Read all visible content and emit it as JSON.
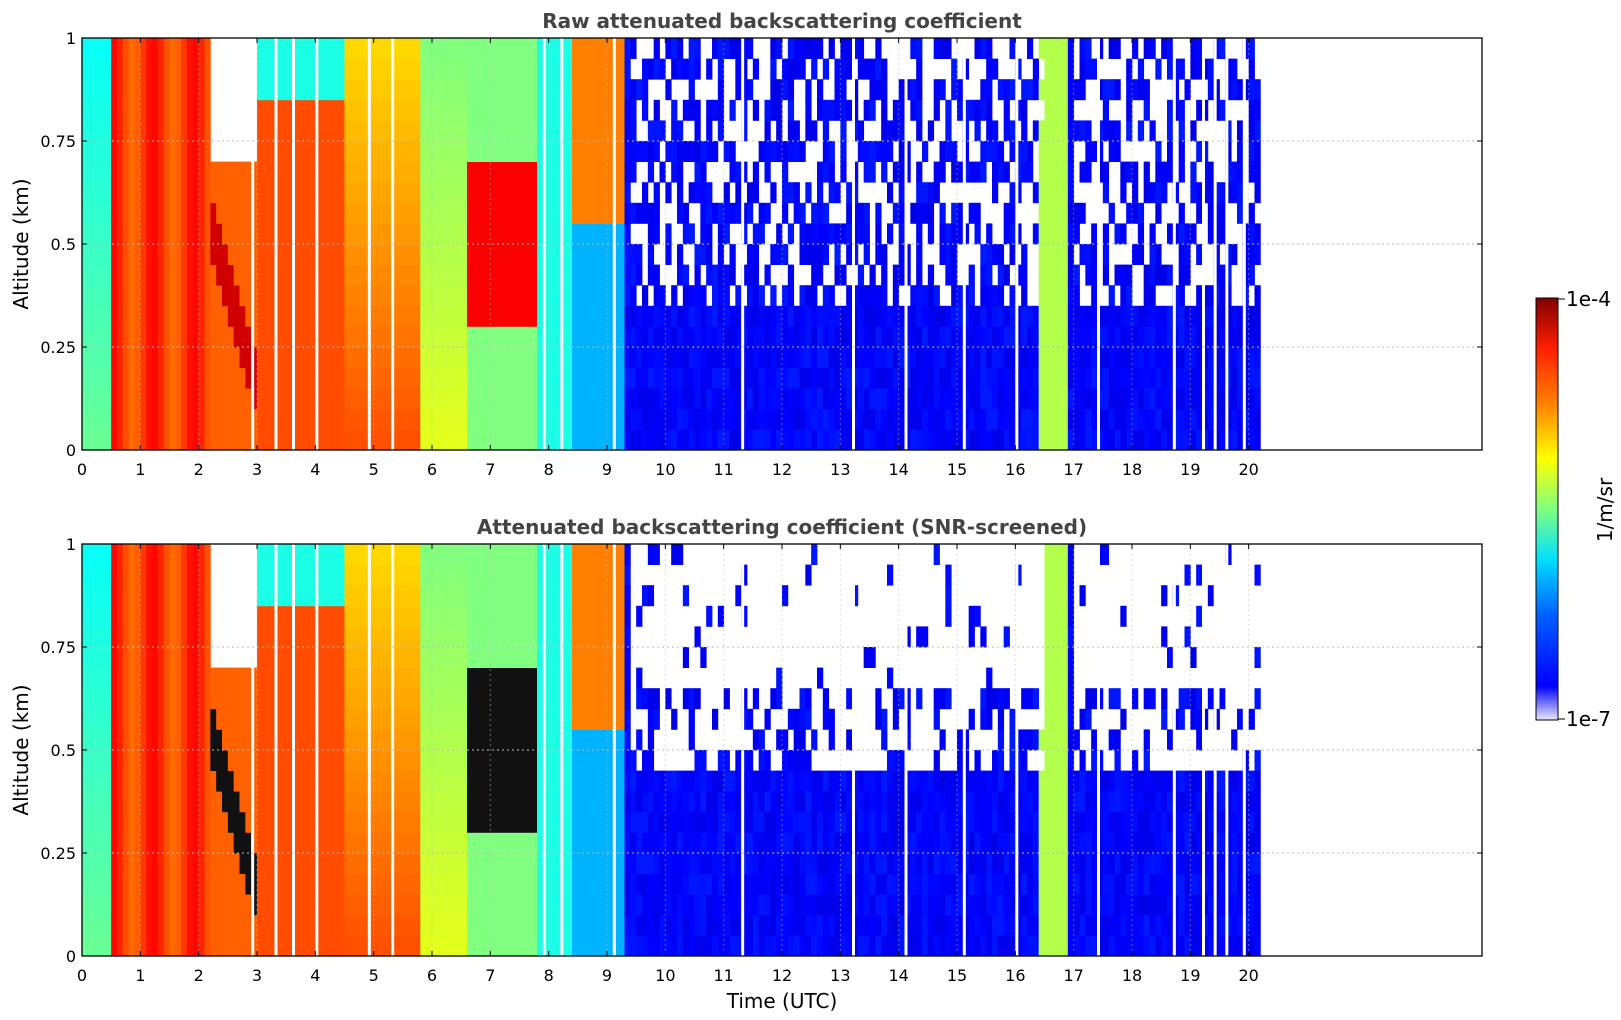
{
  "chart_data": [
    {
      "type": "heatmap",
      "title": "Raw attenuated backscattering coefficient",
      "xlabel": "",
      "ylabel": "Altitude (km)",
      "xlim": [
        0,
        24
      ],
      "ylim": [
        0,
        1
      ],
      "x_ticks": [
        0,
        1,
        2,
        3,
        4,
        5,
        6,
        7,
        8,
        9,
        10,
        11,
        12,
        13,
        14,
        15,
        16,
        17,
        18,
        19,
        20
      ],
      "y_ticks": [
        "0",
        "0.25",
        "0.5",
        "0.75",
        "1"
      ],
      "y_tick_values": [
        0,
        0.25,
        0.5,
        0.75,
        1
      ],
      "grid": true,
      "data_extent_hours": [
        0,
        20.25
      ],
      "screened": false
    },
    {
      "type": "heatmap",
      "title": "Attenuated backscattering coefficient (SNR-screened)",
      "xlabel": "Time (UTC)",
      "ylabel": "Altitude (km)",
      "xlim": [
        0,
        24
      ],
      "ylim": [
        0,
        1
      ],
      "x_ticks": [
        0,
        1,
        2,
        3,
        4,
        5,
        6,
        7,
        8,
        9,
        10,
        11,
        12,
        13,
        14,
        15,
        16,
        17,
        18,
        19,
        20
      ],
      "y_ticks": [
        "0",
        "0.25",
        "0.5",
        "0.75",
        "1"
      ],
      "y_tick_values": [
        0,
        0.25,
        0.5,
        0.75,
        1
      ],
      "grid": true,
      "data_extent_hours": [
        0,
        20.25
      ],
      "screened": true
    }
  ],
  "colorbar": {
    "max_label": "1e-4",
    "min_label": "1e-7",
    "unit_label": "1/m/sr",
    "colormap": "jet",
    "scale": "log"
  }
}
